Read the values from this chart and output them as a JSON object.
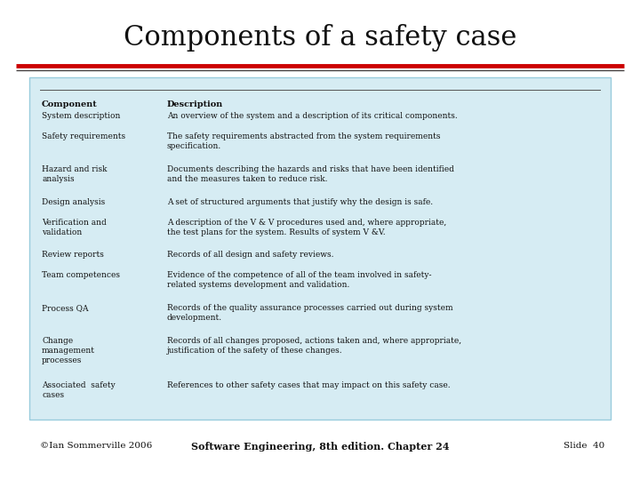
{
  "title": "Components of a safety case",
  "bg_color": "#ffffff",
  "table_bg_color": "#d6ecf3",
  "red_line_color": "#cc0000",
  "dark_line_color": "#555555",
  "header_col1": "Component",
  "header_col2": "Description",
  "rows": [
    {
      "col1": "System description",
      "col2": "An overview of the system and a description of its critical components."
    },
    {
      "col1": "Safety requirements",
      "col2": "The safety requirements abstracted from the system requirements\nspecification."
    },
    {
      "col1": "Hazard and risk\nanalysis",
      "col2": "Documents describing the hazards and risks that have been identified\nand the measures taken to reduce risk."
    },
    {
      "col1": "Design analysis",
      "col2": "A set of structured arguments that justify why the design is safe."
    },
    {
      "col1": "Verification and\nvalidation",
      "col2": "A description of the V & V procedures used and, where appropriate,\nthe test plans for the system. Results of system V &V."
    },
    {
      "col1": "Review reports",
      "col2": "Records of all design and safety reviews."
    },
    {
      "col1": "Team competences",
      "col2": "Evidence of the competence of all of the team involved in safety-\nrelated systems development and validation."
    },
    {
      "col1": "Process QA",
      "col2": "Records of the quality assurance processes carried out during system\ndevelopment."
    },
    {
      "col1": "Change\nmanagement\nprocesses",
      "col2": "Records of all changes proposed, actions taken and, where appropriate,\njustification of the safety of these changes."
    },
    {
      "col1": "Associated  safety\ncases",
      "col2": "References to other safety cases that may impact on this safety case."
    }
  ],
  "footer_left": "©Ian Sommerville 2006",
  "footer_center": "Software Engineering, 8th edition. Chapter 24",
  "footer_right": "Slide  40",
  "title_fontsize": 22,
  "table_fontsize": 6.5,
  "header_fontsize": 7.0,
  "footer_fontsize": 7.5
}
